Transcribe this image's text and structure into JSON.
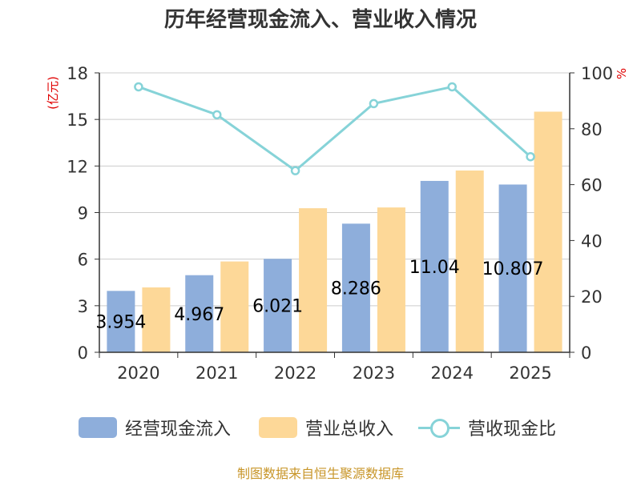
{
  "chart_data": {
    "type": "bar+line",
    "title": "历年经营现金流入、营业收入情况",
    "categories": [
      "2020",
      "2021",
      "2022",
      "2023",
      "2024",
      "2025"
    ],
    "y_left": {
      "unit": "(亿元)",
      "min": 0,
      "max": 18,
      "ticks": [
        0,
        3,
        6,
        9,
        12,
        15,
        18
      ]
    },
    "y_right": {
      "unit": "%",
      "min": 0,
      "max": 100,
      "ticks": [
        0,
        20,
        40,
        60,
        80,
        100
      ]
    },
    "series": [
      {
        "name": "经营现金流入",
        "type": "bar",
        "axis": "left",
        "color": "#8eaedb",
        "values": [
          3.954,
          4.967,
          6.021,
          8.286,
          11.04,
          10.807
        ],
        "labels": [
          "3.954",
          "4.967",
          "6.021",
          "8.286",
          "11.04",
          "10.807"
        ]
      },
      {
        "name": "营业总收入",
        "type": "bar",
        "axis": "left",
        "color": "#fdd898",
        "values": [
          4.18,
          5.85,
          9.28,
          9.33,
          11.71,
          15.5
        ]
      },
      {
        "name": "营收现金比",
        "type": "line",
        "axis": "right",
        "color": "#86d3d8",
        "values": [
          95,
          85,
          65,
          89,
          95,
          70
        ]
      }
    ],
    "legend_position": "bottom",
    "grid": true
  },
  "source": "制图数据来自恒生聚源数据库"
}
